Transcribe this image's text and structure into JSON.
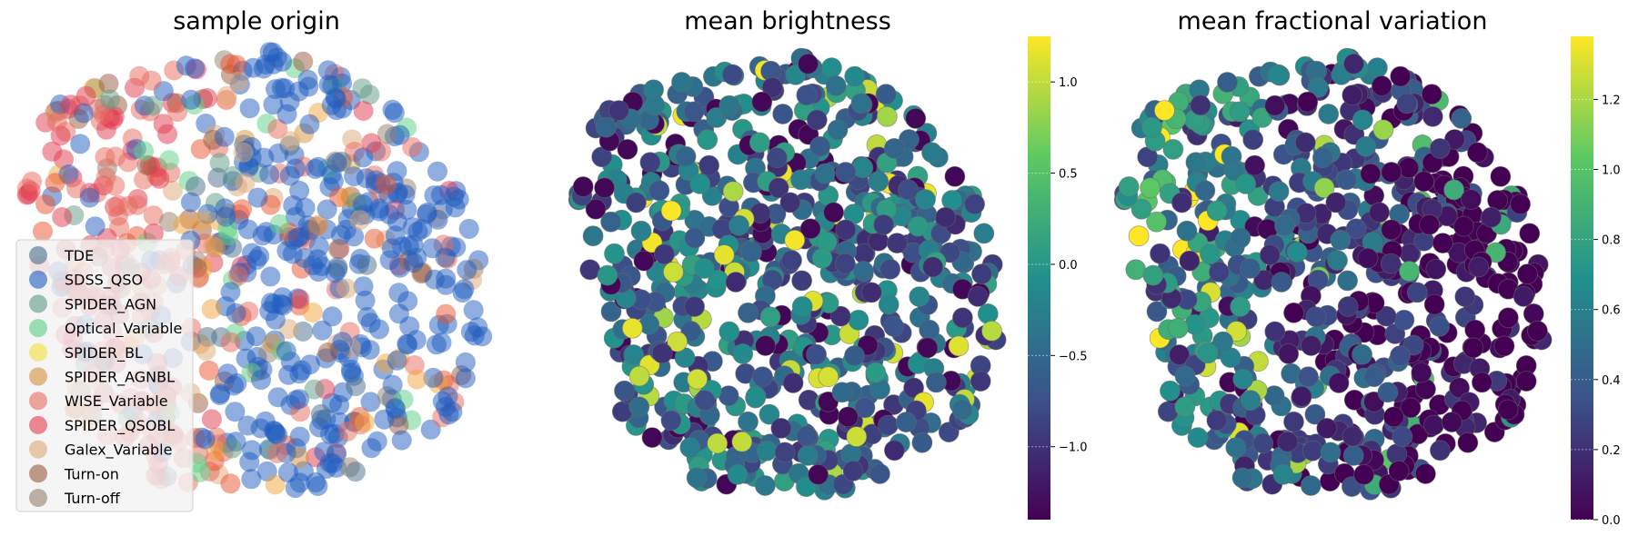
{
  "chart_data": [
    {
      "type": "scatter",
      "title": "sample origin",
      "encoding": "categorical",
      "legend": {
        "placement": "lower-left",
        "entries": [
          {
            "name": "TDE",
            "color": "#4a6d8c"
          },
          {
            "name": "SDSS_QSO",
            "color": "#1f5bbf"
          },
          {
            "name": "SPIDER_AGN",
            "color": "#5e9a84"
          },
          {
            "name": "Optical_Variable",
            "color": "#5ccf86"
          },
          {
            "name": "SPIDER_BL",
            "color": "#f2e03a"
          },
          {
            "name": "SPIDER_AGNBL",
            "color": "#d4913d"
          },
          {
            "name": "WISE_Variable",
            "color": "#e86a5e"
          },
          {
            "name": "SPIDER_QSOBL",
            "color": "#e23a4f"
          },
          {
            "name": "Galex_Variable",
            "color": "#dea878"
          },
          {
            "name": "Turn-on",
            "color": "#9a5a3e"
          },
          {
            "name": "Turn-off",
            "color": "#93806a"
          }
        ]
      },
      "point_colors": [
        "#1f5bbf",
        "#e86a5e",
        "#e23a4f",
        "#d4913d",
        "#5e9a84",
        "#4a6d8c",
        "#1f5bbf",
        "#e86a5e",
        "#dea878",
        "#1f5bbf",
        "#5ccf86",
        "#f2a33a",
        "#9a5a3e",
        "#1f5bbf",
        "#93806a",
        "#e8542e"
      ],
      "grid": false,
      "axes": false
    },
    {
      "type": "scatter",
      "title": "mean brightness",
      "encoding": "color",
      "colormap": [
        "#440154",
        "#3b528b",
        "#21908d",
        "#5dc963",
        "#fde725"
      ],
      "colorbar": {
        "range": [
          -1.4,
          1.25
        ],
        "ticks": [
          "1.0",
          "0.5",
          "0.0",
          "−0.5",
          "−1.0"
        ],
        "tick_values": [
          1.0,
          0.5,
          0.0,
          -0.5,
          -1.0
        ]
      },
      "grid": false,
      "axes": false
    },
    {
      "type": "scatter",
      "title": "mean fractional variation",
      "encoding": "color",
      "colormap": [
        "#440154",
        "#3b528b",
        "#21908d",
        "#5dc963",
        "#fde725"
      ],
      "colorbar": {
        "range": [
          0.0,
          1.38
        ],
        "ticks": [
          "1.2",
          "1.0",
          "0.8",
          "0.6",
          "0.4",
          "0.2",
          "0.0"
        ],
        "tick_values": [
          1.2,
          1.0,
          0.8,
          0.6,
          0.4,
          0.2,
          0.0
        ]
      },
      "grid": false,
      "axes": false
    }
  ]
}
